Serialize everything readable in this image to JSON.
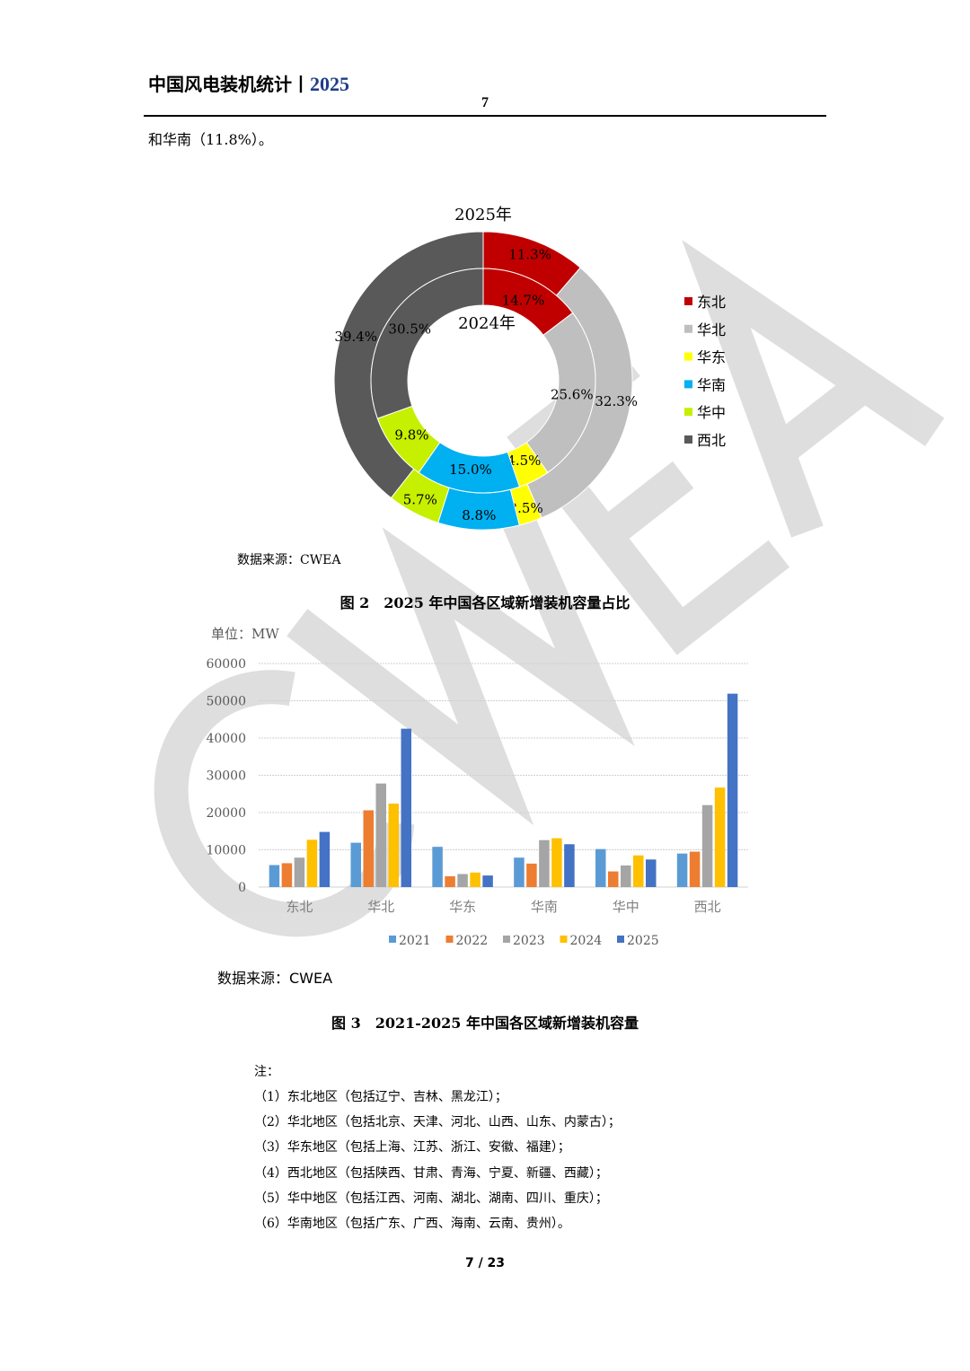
{
  "header": {
    "title": "中国风电装机统计丨",
    "year": "2025",
    "page": "7"
  },
  "intro": "和华南（11.8%）。",
  "watermark": "CWEA",
  "colors": {
    "东北": "#c00000",
    "华北": "#bfbfbf",
    "华东": "#ffff00",
    "华南": "#00b0f0",
    "华中": "#c5f000",
    "西北": "#595959"
  },
  "chart_data": [
    {
      "type": "pie",
      "variant": "double-donut",
      "title": "2025年",
      "inner_label": "2024年",
      "categories": [
        "东北",
        "华北",
        "华东",
        "华南",
        "华中",
        "西北"
      ],
      "series": [
        {
          "name": "2025年",
          "ring": "outer",
          "values": [
            11.3,
            32.3,
            2.5,
            8.8,
            5.7,
            39.4
          ],
          "labels": [
            "11.3%",
            "32.3%",
            "2.5%",
            "8.8%",
            "5.7%",
            "39.4%"
          ]
        },
        {
          "name": "2024年",
          "ring": "inner",
          "values": [
            14.7,
            25.6,
            4.5,
            15.0,
            9.8,
            30.5
          ],
          "labels": [
            "14.7%",
            "25.6%",
            "4.5%",
            "15.0%",
            "9.8%",
            "30.5%"
          ]
        }
      ],
      "legend": "right"
    },
    {
      "type": "bar",
      "ylabel": "单位：MW",
      "ylim": [
        0,
        60000
      ],
      "yticks": [
        "0",
        "10000",
        "20000",
        "30000",
        "40000",
        "50000",
        "60000"
      ],
      "grid": true,
      "legend": "bottom",
      "categories": [
        "东北",
        "华北",
        "华东",
        "华南",
        "华中",
        "西北"
      ],
      "series": [
        {
          "name": "2021",
          "color": "#5b9bd5",
          "values": [
            5900,
            11900,
            10800,
            7900,
            10200,
            9000
          ]
        },
        {
          "name": "2022",
          "color": "#ed7d31",
          "values": [
            6400,
            20600,
            2900,
            6300,
            4200,
            9500
          ]
        },
        {
          "name": "2023",
          "color": "#a5a5a5",
          "values": [
            7900,
            27800,
            3500,
            12600,
            5800,
            22000
          ]
        },
        {
          "name": "2024",
          "color": "#ffc000",
          "values": [
            12700,
            22400,
            3900,
            13100,
            8500,
            26700
          ]
        },
        {
          "name": "2025",
          "color": "#4472c4",
          "values": [
            14800,
            42500,
            3100,
            11500,
            7400,
            51900
          ]
        }
      ]
    }
  ],
  "fig2": {
    "source": "数据来源：CWEA",
    "caption": "图 2　2025 年中国各区域新增装机容量占比"
  },
  "fig3": {
    "source": "数据来源：CWEA",
    "caption": "图 3　2021-2025 年中国各区域新增装机容量"
  },
  "notes": {
    "title": "注：",
    "items": [
      "（1）东北地区（包括辽宁、吉林、黑龙江）；",
      "（2）华北地区（包括北京、天津、河北、山西、山东、内蒙古）；",
      "（3）华东地区（包括上海、江苏、浙江、安徽、福建）；",
      "（4）西北地区（包括陕西、甘肃、青海、宁夏、新疆、西藏）；",
      "（5）华中地区（包括江西、河南、湖北、湖南、四川、重庆）；",
      "（6）华南地区（包括广东、广西、海南、云南、贵州）。"
    ]
  },
  "footer": "7 / 23"
}
